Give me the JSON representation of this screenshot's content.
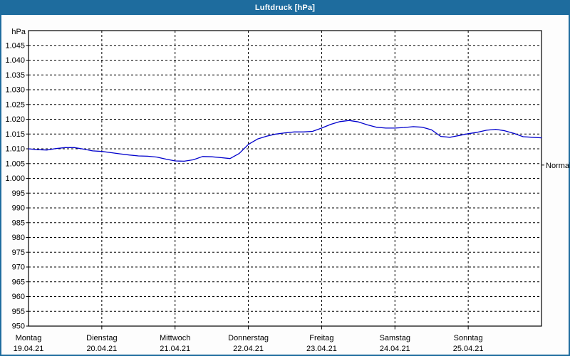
{
  "window": {
    "title": "Luftdruck [hPa]"
  },
  "colors": {
    "titlebar_bg": "#1e6c9e",
    "window_border": "#1e6c9e",
    "title_text": "#ffffff",
    "plot_bg": "#ffffff",
    "grid": "#000000",
    "axis_text": "#000000",
    "line": "#0000cc",
    "normal_text": "#222233"
  },
  "chart_data": {
    "type": "line",
    "title": "Luftdruck [hPa]",
    "ylabel": "hPa",
    "ylim": [
      950,
      1050
    ],
    "ytick_step": 5,
    "ytick_label_min": 950,
    "ytick_label_max": 1045,
    "grid": "dashed",
    "legend_position": "none",
    "x_days": [
      {
        "weekday": "Montag",
        "date": "19.04.21"
      },
      {
        "weekday": "Dienstag",
        "date": "20.04.21"
      },
      {
        "weekday": "Mittwoch",
        "date": "21.04.21"
      },
      {
        "weekday": "Donnerstag",
        "date": "22.04.21"
      },
      {
        "weekday": "Freitag",
        "date": "23.04.21"
      },
      {
        "weekday": "Samstag",
        "date": "24.04.21"
      },
      {
        "weekday": "Sonntag",
        "date": "25.04.21"
      }
    ],
    "normal_marker": {
      "label": "Normal",
      "value_hpa": 1004.5
    },
    "series": [
      {
        "name": "Luftdruck",
        "unit": "hPa",
        "samples_per_day": 8,
        "values": [
          1010.0,
          1009.7,
          1009.6,
          1010.1,
          1010.4,
          1010.4,
          1009.9,
          1009.3,
          1009.1,
          1008.7,
          1008.3,
          1007.9,
          1007.6,
          1007.5,
          1007.2,
          1006.5,
          1005.9,
          1005.8,
          1006.3,
          1007.4,
          1007.3,
          1007.0,
          1006.7,
          1008.4,
          1011.5,
          1013.3,
          1014.3,
          1015.0,
          1015.4,
          1015.7,
          1015.7,
          1015.9,
          1017.0,
          1018.3,
          1019.2,
          1019.6,
          1019.1,
          1018.1,
          1017.3,
          1017.0,
          1017.0,
          1017.2,
          1017.5,
          1017.3,
          1016.4,
          1014.2,
          1013.9,
          1014.5,
          1015.1,
          1015.6,
          1016.3,
          1016.6,
          1016.1,
          1015.2,
          1014.1,
          1013.9,
          1013.7
        ]
      }
    ]
  }
}
